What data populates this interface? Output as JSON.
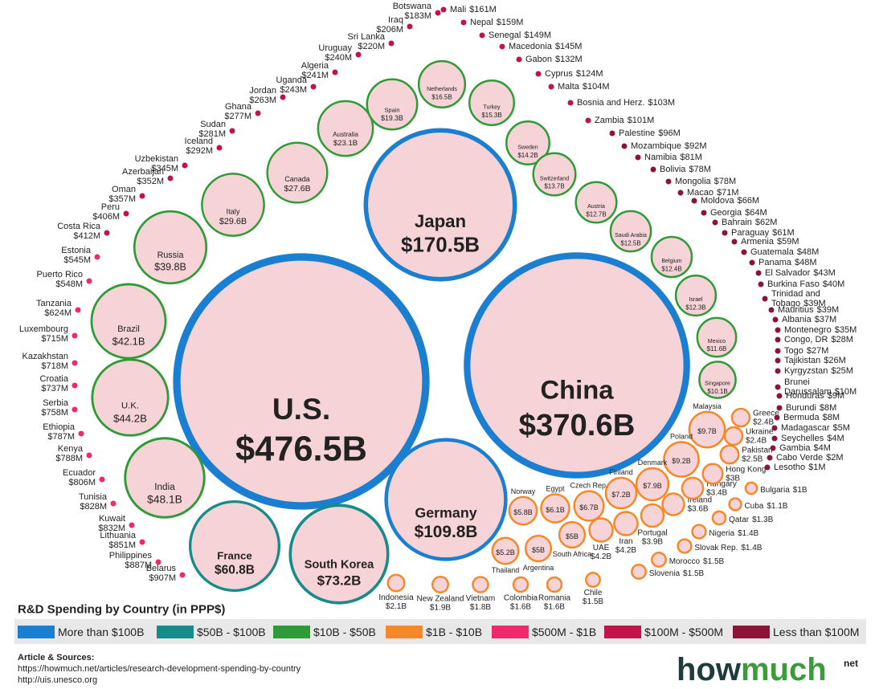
{
  "chart_data": {
    "type": "bubble",
    "title": "R&D Spending by Country (in PPP$)",
    "series": [
      {
        "name": "More than $100B",
        "color": "#1a7fd1",
        "categories": [
          "U.S.",
          "China",
          "Japan",
          "Germany"
        ],
        "values": [
          476.5,
          370.6,
          170.5,
          109.8
        ],
        "value_labels": [
          "$476.5B",
          "$370.6B",
          "$170.5B",
          "$109.8B"
        ]
      },
      {
        "name": "$50B - $100B",
        "color": "#178a8a",
        "categories": [
          "South Korea",
          "France"
        ],
        "values": [
          73.2,
          60.8
        ],
        "value_labels": [
          "$73.2B",
          "$60.8B"
        ]
      },
      {
        "name": "$10B - $50B",
        "color": "#2e9b36",
        "categories": [
          "India",
          "U.K.",
          "Brazil",
          "Russia",
          "Italy",
          "Canada",
          "Australia",
          "Spain",
          "Netherlands",
          "Turkey",
          "Sweden",
          "Switzerland",
          "Austria",
          "Saudi Arabia",
          "Belgium",
          "Israel",
          "Mexico",
          "Singapore"
        ],
        "values": [
          48.1,
          44.2,
          42.1,
          39.8,
          29.6,
          27.6,
          23.1,
          19.3,
          16.5,
          15.3,
          14.2,
          13.7,
          12.7,
          12.5,
          12.4,
          12.3,
          11.6,
          10.1
        ],
        "value_labels": [
          "$48.1B",
          "$44.2B",
          "$42.1B",
          "$39.8B",
          "$29.6B",
          "$27.6B",
          "$23.1B",
          "$19.3B",
          "$16.5B",
          "$15.3B",
          "$14.2B",
          "$13.7B",
          "$12.7B",
          "$12.5B",
          "$12.4B",
          "$12.3B",
          "$11.6B",
          "$10.1B"
        ]
      },
      {
        "name": "$1B - $10B",
        "color": "#f5892a",
        "categories": [
          "Malaysia",
          "Poland",
          "Denmark",
          "Finland",
          "Czech Rep.",
          "Egypt",
          "Norway",
          "Thailand",
          "Argentina",
          "South Africa",
          "UAE",
          "Iran",
          "Portugal",
          "Ireland",
          "Hungary",
          "Hong Kong",
          "Pakistan",
          "Greece",
          "Ukraine",
          "Indonesia",
          "New Zealand",
          "Vietnam",
          "Colombia",
          "Romania",
          "Chile",
          "Morocco",
          "Slovenia",
          "Nigeria",
          "Slovak Rep.",
          "Qatar",
          "Cuba",
          "Bulgaria"
        ],
        "values": [
          9.7,
          9.2,
          7.9,
          7.2,
          6.7,
          6.1,
          5.8,
          5.2,
          5,
          5,
          4.2,
          4.2,
          3.9,
          3.6,
          3.4,
          3,
          2.5,
          2.4,
          2.4,
          2.1,
          1.9,
          1.8,
          1.6,
          1.6,
          1.5,
          1.5,
          1.5,
          1.4,
          1.4,
          1.3,
          1.1,
          1
        ],
        "value_labels": [
          "$9.7B",
          "$9.2B",
          "$7.9B",
          "$7.2B",
          "$6.7B",
          "$6.1B",
          "$5.8B",
          "$5.2B",
          "$5B",
          "$5B",
          "$4.2B",
          "$4.2B",
          "$3.9B",
          "$3.6B",
          "$3.4B",
          "$3B",
          "$2.5B",
          "$2.4B",
          "$2.4B",
          "$2.1B",
          "$1.9B",
          "$1.8B",
          "$1.6B",
          "$1.6B",
          "$1.5B",
          "$1.5B",
          "$1.5B",
          "$1.4B",
          "$1.4B",
          "$1.3B",
          "$1.1B",
          "$1B"
        ]
      },
      {
        "name": "$500M - $1B",
        "color": "#ee2a6c",
        "categories": [
          "Belarus",
          "Philippines",
          "Lithuania",
          "Kuwait",
          "Tunisia",
          "Ecuador",
          "Kenya",
          "Ethiopia",
          "Serbia",
          "Croatia",
          "Kazakhstan",
          "Luxembourg",
          "Tanzania",
          "Puerto Rico",
          "Estonia"
        ],
        "values": [
          0.907,
          0.887,
          0.851,
          0.832,
          0.828,
          0.806,
          0.788,
          0.787,
          0.758,
          0.737,
          0.718,
          0.715,
          0.624,
          0.548,
          0.545
        ],
        "value_labels": [
          "$907M",
          "$887M",
          "$851M",
          "$832M",
          "$828M",
          "$806M",
          "$788M",
          "$787M",
          "$758M",
          "$737M",
          "$718M",
          "$715M",
          "$624M",
          "$548M",
          "$545M"
        ]
      },
      {
        "name": "$100M - $500M",
        "color": "#c2134a",
        "categories": [
          "Costa Rica",
          "Peru",
          "Oman",
          "Azerbaijan",
          "Uzbekistan",
          "Iceland",
          "Sudan",
          "Ghana",
          "Jordan",
          "Uganda",
          "Algeria",
          "Uruguay",
          "Sri Lanka",
          "Iraq",
          "Botswana",
          "Mali",
          "Nepal",
          "Senegal",
          "Macedonia",
          "Gabon",
          "Cyprus",
          "Malta",
          "Bosnia and Herz.",
          "Zambia"
        ],
        "values": [
          0.412,
          0.406,
          0.357,
          0.352,
          0.345,
          0.292,
          0.281,
          0.277,
          0.263,
          0.243,
          0.241,
          0.24,
          0.22,
          0.206,
          0.183,
          0.161,
          0.159,
          0.149,
          0.145,
          0.132,
          0.124,
          0.104,
          0.103,
          0.101
        ],
        "value_labels": [
          "$412M",
          "$406M",
          "$357M",
          "$352M",
          "$345M",
          "$292M",
          "$281M",
          "$277M",
          "$263M",
          "$243M",
          "$241M",
          "$240M",
          "$220M",
          "$206M",
          "$183M",
          "$161M",
          "$159M",
          "$149M",
          "$145M",
          "$132M",
          "$124M",
          "$104M",
          "$103M",
          "$101M"
        ]
      },
      {
        "name": "Less than $100M",
        "color": "#8a1538",
        "categories": [
          "Palestine",
          "Mozambique",
          "Namibia",
          "Bolivia",
          "Mongolia",
          "Macao",
          "Moldova",
          "Georgia",
          "Bahrain",
          "Paraguay",
          "Armenia",
          "Guatemala",
          "Panama",
          "El Salvador",
          "Burkina Faso",
          "Trinidad and Tobago",
          "Mauritius",
          "Albania",
          "Montenegro",
          "Congo, DR",
          "Togo",
          "Tajikistan",
          "Kyrgyzstan",
          "Brunei Darussalam",
          "Honduras",
          "Burundi",
          "Bermuda",
          "Madagascar",
          "Seychelles",
          "Gambia",
          "Cabo Verde",
          "Lesotho"
        ],
        "values": [
          0.096,
          0.092,
          0.081,
          0.078,
          0.078,
          0.071,
          0.066,
          0.064,
          0.062,
          0.061,
          0.059,
          0.048,
          0.048,
          0.043,
          0.04,
          0.039,
          0.039,
          0.037,
          0.035,
          0.028,
          0.027,
          0.026,
          0.025,
          0.01,
          0.009,
          0.008,
          0.008,
          0.005,
          0.004,
          0.004,
          0.002,
          0.001
        ],
        "value_labels": [
          "$96M",
          "$92M",
          "$81M",
          "$78M",
          "$78M",
          "$71M",
          "$66M",
          "$64M",
          "$62M",
          "$61M",
          "$59M",
          "$48M",
          "$48M",
          "$43M",
          "$40M",
          "$39M",
          "$39M",
          "$37M",
          "$35M",
          "$28M",
          "$27M",
          "$26M",
          "$25M",
          "$10M",
          "$9M",
          "$8M",
          "$8M",
          "$5M",
          "$4M",
          "$4M",
          "$2M",
          "$1M"
        ]
      }
    ]
  },
  "sources": {
    "heading": "Article & Sources:",
    "links": [
      "https://howmuch.net/articles/research-development-spending-by-country",
      "http://uis.unesco.org"
    ]
  },
  "logo": {
    "parts": [
      "how",
      "much"
    ],
    "suffix": "net"
  }
}
